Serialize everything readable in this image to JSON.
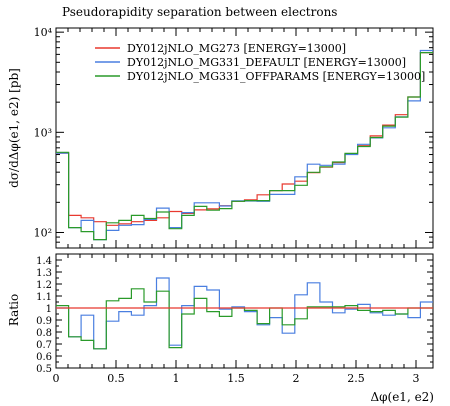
{
  "chart_data": [
    {
      "type": "line",
      "step": true,
      "title": "Pseudorapidity separation between electrons",
      "ylabel": "dσ/dΔφ(e1, e2) [pb]",
      "yscale": "log",
      "ylim": [
        70,
        11000
      ],
      "xlim": [
        0,
        3.14159
      ],
      "ytick_labels": [
        "10²",
        "10³",
        "10⁴"
      ],
      "ytick_values": [
        100,
        1000,
        10000
      ],
      "legend_position": "top",
      "bin_edges": [
        0,
        0.1047,
        0.2094,
        0.3142,
        0.4189,
        0.5236,
        0.6283,
        0.733,
        0.8378,
        0.9425,
        1.0472,
        1.1519,
        1.2566,
        1.3614,
        1.4661,
        1.5708,
        1.6755,
        1.7802,
        1.885,
        1.9897,
        2.0944,
        2.1991,
        2.3038,
        2.4086,
        2.5133,
        2.618,
        2.7227,
        2.8274,
        2.9322,
        3.0369,
        3.1416
      ],
      "series": [
        {
          "name": "DY012jNLO_MG273 [ENERGY=13000]",
          "color": "#e8382f",
          "values": [
            620,
            148,
            140,
            128,
            118,
            122,
            128,
            132,
            140,
            162,
            155,
            168,
            172,
            185,
            205,
            212,
            238,
            262,
            305,
            325,
            395,
            448,
            500,
            605,
            735,
            920,
            1180,
            1500,
            2250,
            6250
          ]
        },
        {
          "name": "DY012jNLO_MG331_DEFAULT [ENERGY=13000]",
          "color": "#4a7fe0",
          "values": [
            620,
            112,
            132,
            85,
            105,
            118,
            120,
            135,
            175,
            112,
            158,
            198,
            198,
            184,
            207,
            206,
            205,
            240,
            240,
            360,
            480,
            469,
            482,
            600,
            760,
            879,
            1110,
            1424,
            2060,
            6560
          ]
        },
        {
          "name": "DY012jNLO_MG331_OFFPARAMS [ENERGY=13000]",
          "color": "#2a9a2a",
          "values": [
            632,
            112,
            102,
            85,
            125,
            132,
            148,
            138,
            160,
            109,
            148,
            182,
            167,
            173,
            205,
            208,
            208,
            262,
            262,
            296,
            399,
            453,
            505,
            616,
            721,
            888,
            1153,
            1420,
            2250,
            6250
          ]
        }
      ]
    },
    {
      "type": "line",
      "step": true,
      "ylabel": "Ratio",
      "xlabel": "Δφ(e1, e2)",
      "ylim": [
        0.5,
        1.45
      ],
      "xlim": [
        0,
        3.14159
      ],
      "xtick_labels": [
        "0",
        "0.5",
        "1",
        "1.5",
        "2",
        "2.5",
        "3"
      ],
      "xtick_values": [
        0,
        0.5,
        1,
        1.5,
        2,
        2.5,
        3
      ],
      "ytick_labels": [
        "0.5",
        "0.6",
        "0.7",
        "0.8",
        "0.9",
        "1",
        "1.1",
        "1.2",
        "1.3",
        "1.4"
      ],
      "ytick_values": [
        0.5,
        0.6,
        0.7,
        0.8,
        0.9,
        1.0,
        1.1,
        1.2,
        1.3,
        1.4
      ],
      "series": [
        {
          "name": "DY012jNLO_MG273 [ENERGY=13000]",
          "color": "#e8382f",
          "values": [
            1,
            1,
            1,
            1,
            1,
            1,
            1,
            1,
            1,
            1,
            1,
            1,
            1,
            1,
            1,
            1,
            1,
            1,
            1,
            1,
            1,
            1,
            1,
            1,
            1,
            1,
            1,
            1,
            1,
            1
          ]
        },
        {
          "name": "DY012jNLO_MG331_DEFAULT [ENERGY=13000]",
          "color": "#4a7fe0",
          "values": [
            1.0,
            0.76,
            0.94,
            0.66,
            0.89,
            0.97,
            0.94,
            1.02,
            1.25,
            0.69,
            1.02,
            1.18,
            1.15,
            0.99,
            1.01,
            0.97,
            0.86,
            0.92,
            0.79,
            1.11,
            1.21,
            1.05,
            0.96,
            0.99,
            1.03,
            0.96,
            0.94,
            0.95,
            0.92,
            1.05
          ]
        },
        {
          "name": "DY012jNLO_MG331_OFFPARAMS [ENERGY=13000]",
          "color": "#2a9a2a",
          "values": [
            1.02,
            0.76,
            0.73,
            0.66,
            1.06,
            1.08,
            1.16,
            1.05,
            1.14,
            0.67,
            0.95,
            1.08,
            0.97,
            0.93,
            1.0,
            0.98,
            0.87,
            1.0,
            0.86,
            0.91,
            1.01,
            1.01,
            1.01,
            1.02,
            0.98,
            0.97,
            0.98,
            0.95,
            1.0,
            1.0
          ]
        }
      ]
    }
  ]
}
